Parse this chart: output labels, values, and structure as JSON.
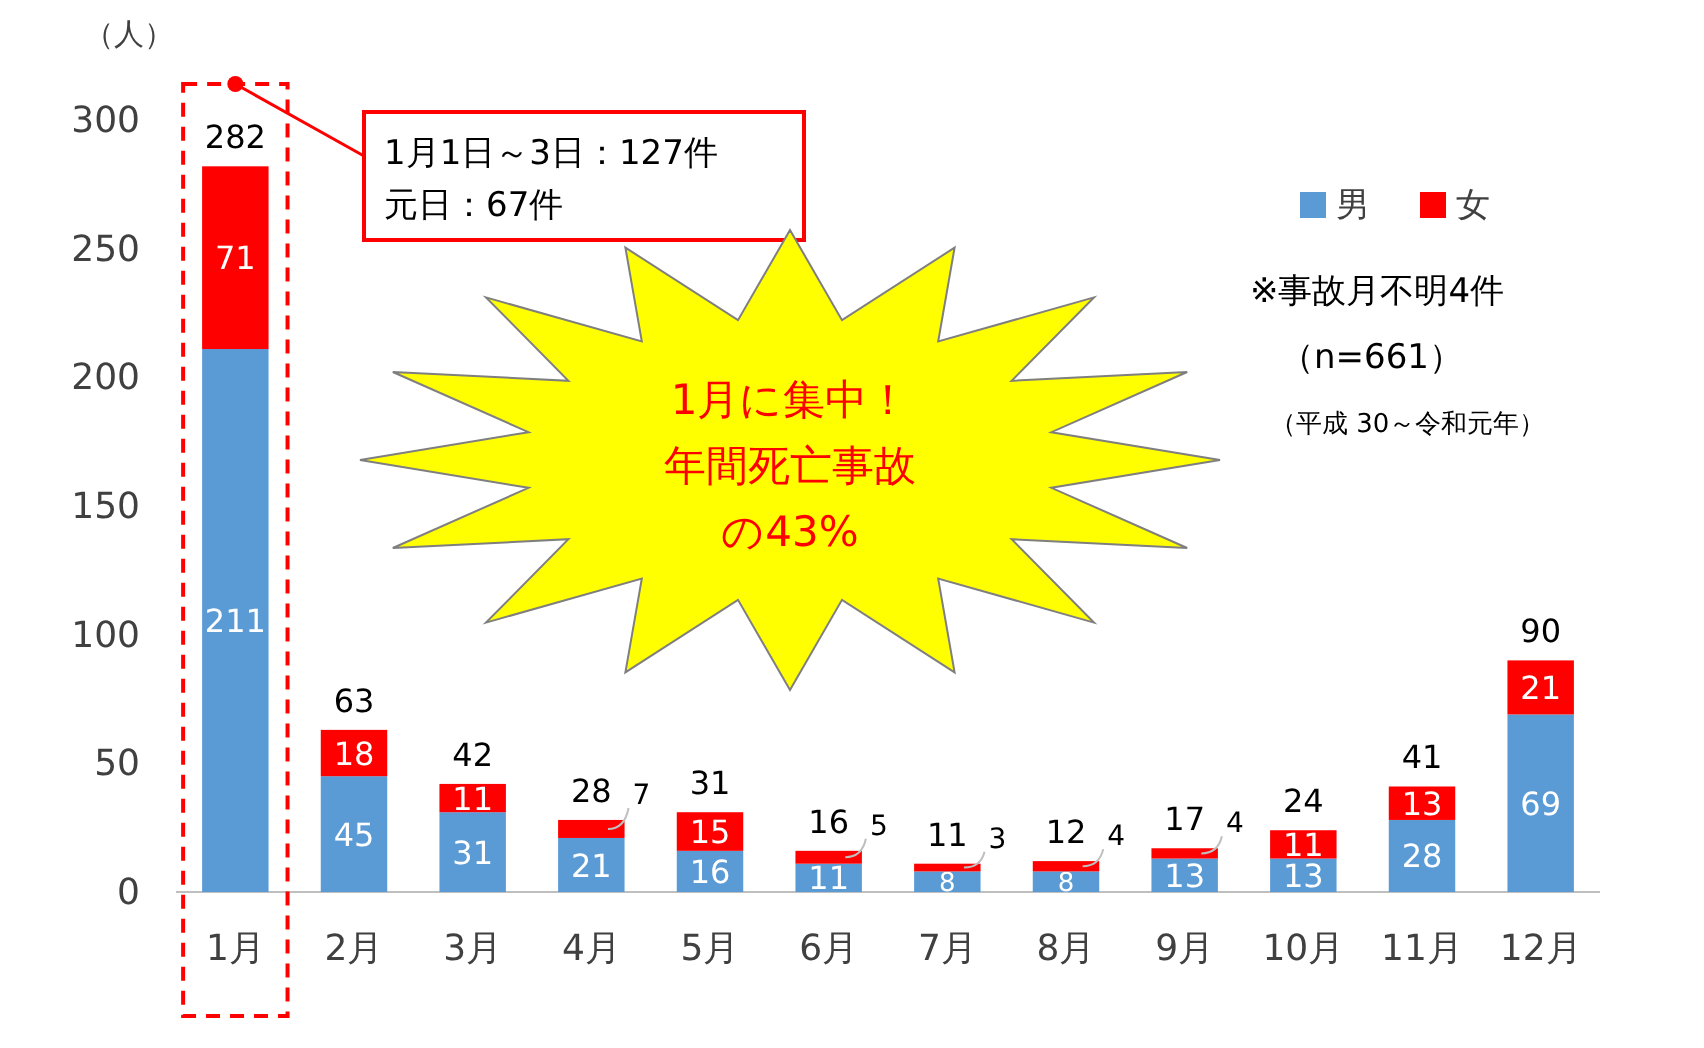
{
  "chart_data": {
    "type": "bar",
    "stacked": true,
    "ylabel": "（人）",
    "categories": [
      "1月",
      "2月",
      "3月",
      "4月",
      "5月",
      "6月",
      "7月",
      "8月",
      "9月",
      "10月",
      "11月",
      "12月"
    ],
    "series": [
      {
        "name": "男",
        "color": "#5b9bd5",
        "values": [
          211,
          45,
          31,
          21,
          16,
          11,
          8,
          8,
          13,
          13,
          28,
          69
        ]
      },
      {
        "name": "女",
        "color": "#ff0000",
        "values": [
          71,
          18,
          11,
          7,
          15,
          5,
          3,
          4,
          4,
          11,
          13,
          21
        ]
      }
    ],
    "totals": [
      "282",
      "63",
      "42",
      "28",
      "31",
      "16",
      "11",
      "12",
      "17",
      "24",
      "41",
      "90"
    ],
    "data_labels": true,
    "ylim": [
      0,
      300
    ],
    "yticks": [
      0,
      50,
      100,
      150,
      200,
      250,
      300
    ],
    "grid": false,
    "legend": "top right",
    "annotations": [
      "1月1日～3日：127件",
      "元日：67件",
      "1月に集中！",
      "年間死亡事故",
      "の43%",
      "※事故月不明4件",
      "（n=661）",
      "（平成 30～令和元年）"
    ]
  }
}
